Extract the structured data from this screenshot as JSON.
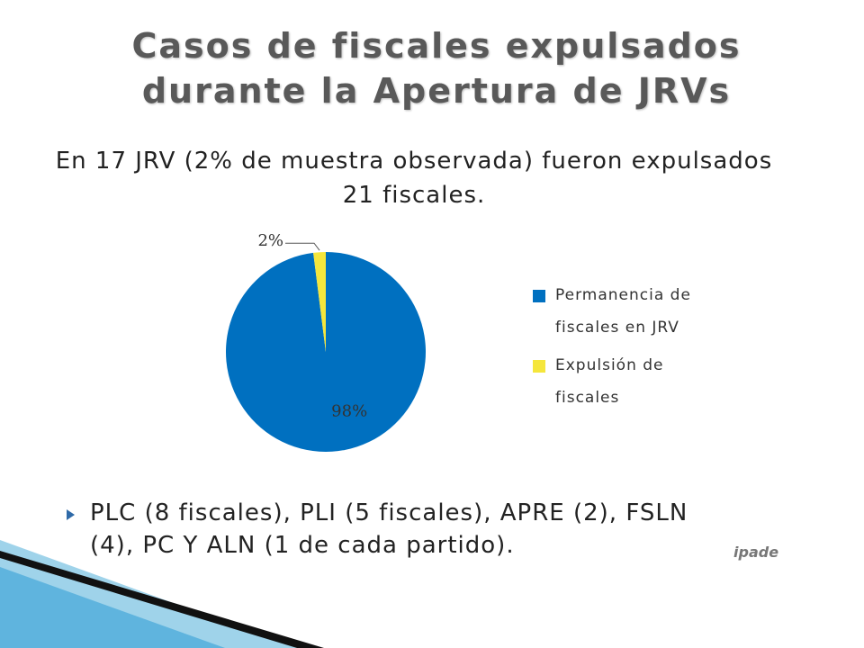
{
  "slide": {
    "title": "Casos de fiscales expulsados durante la Apertura de JRVs",
    "summary": "En 17 JRV (2% de muestra observada) fueron expulsados 21 fiscales.",
    "bullet": "PLC (8 fiscales), PLI (5 fiscales), APRE (2), FSLN (4), PC Y ALN (1 de cada partido).",
    "logo": "ipade"
  },
  "chart_data": {
    "type": "pie",
    "categories": [
      "Permanencia de fiscales en JRV",
      "Expulsión de fiscales"
    ],
    "values": [
      98,
      2
    ],
    "value_labels": [
      "98%",
      "2%"
    ],
    "colors": [
      "#0070c0",
      "#f5e63c"
    ]
  }
}
